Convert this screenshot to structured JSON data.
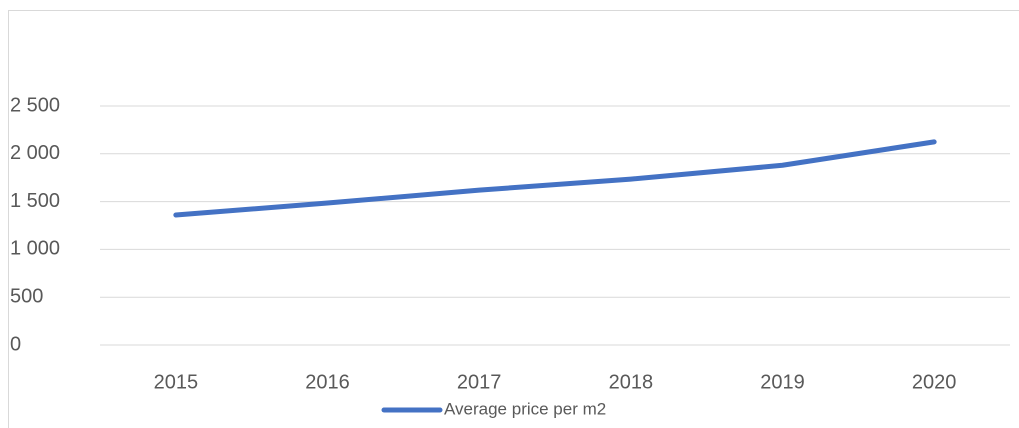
{
  "chart_data": {
    "type": "line",
    "categories": [
      "2015",
      "2016",
      "2017",
      "2018",
      "2019",
      "2020"
    ],
    "series": [
      {
        "name": "Average price per m2",
        "color": "#4472c4",
        "values": [
          1360,
          1485,
          1620,
          1735,
          1880,
          2125
        ]
      }
    ],
    "ylim": [
      0,
      2500
    ],
    "yticks": [
      0,
      500,
      {
        "value": 1000,
        "label": "1 000"
      },
      {
        "value": 1500,
        "label": "1 500"
      },
      {
        "value": 2000,
        "label": "2 000"
      },
      {
        "value": 2500,
        "label": "2 500"
      }
    ],
    "grid": true,
    "legend": "bottom"
  }
}
